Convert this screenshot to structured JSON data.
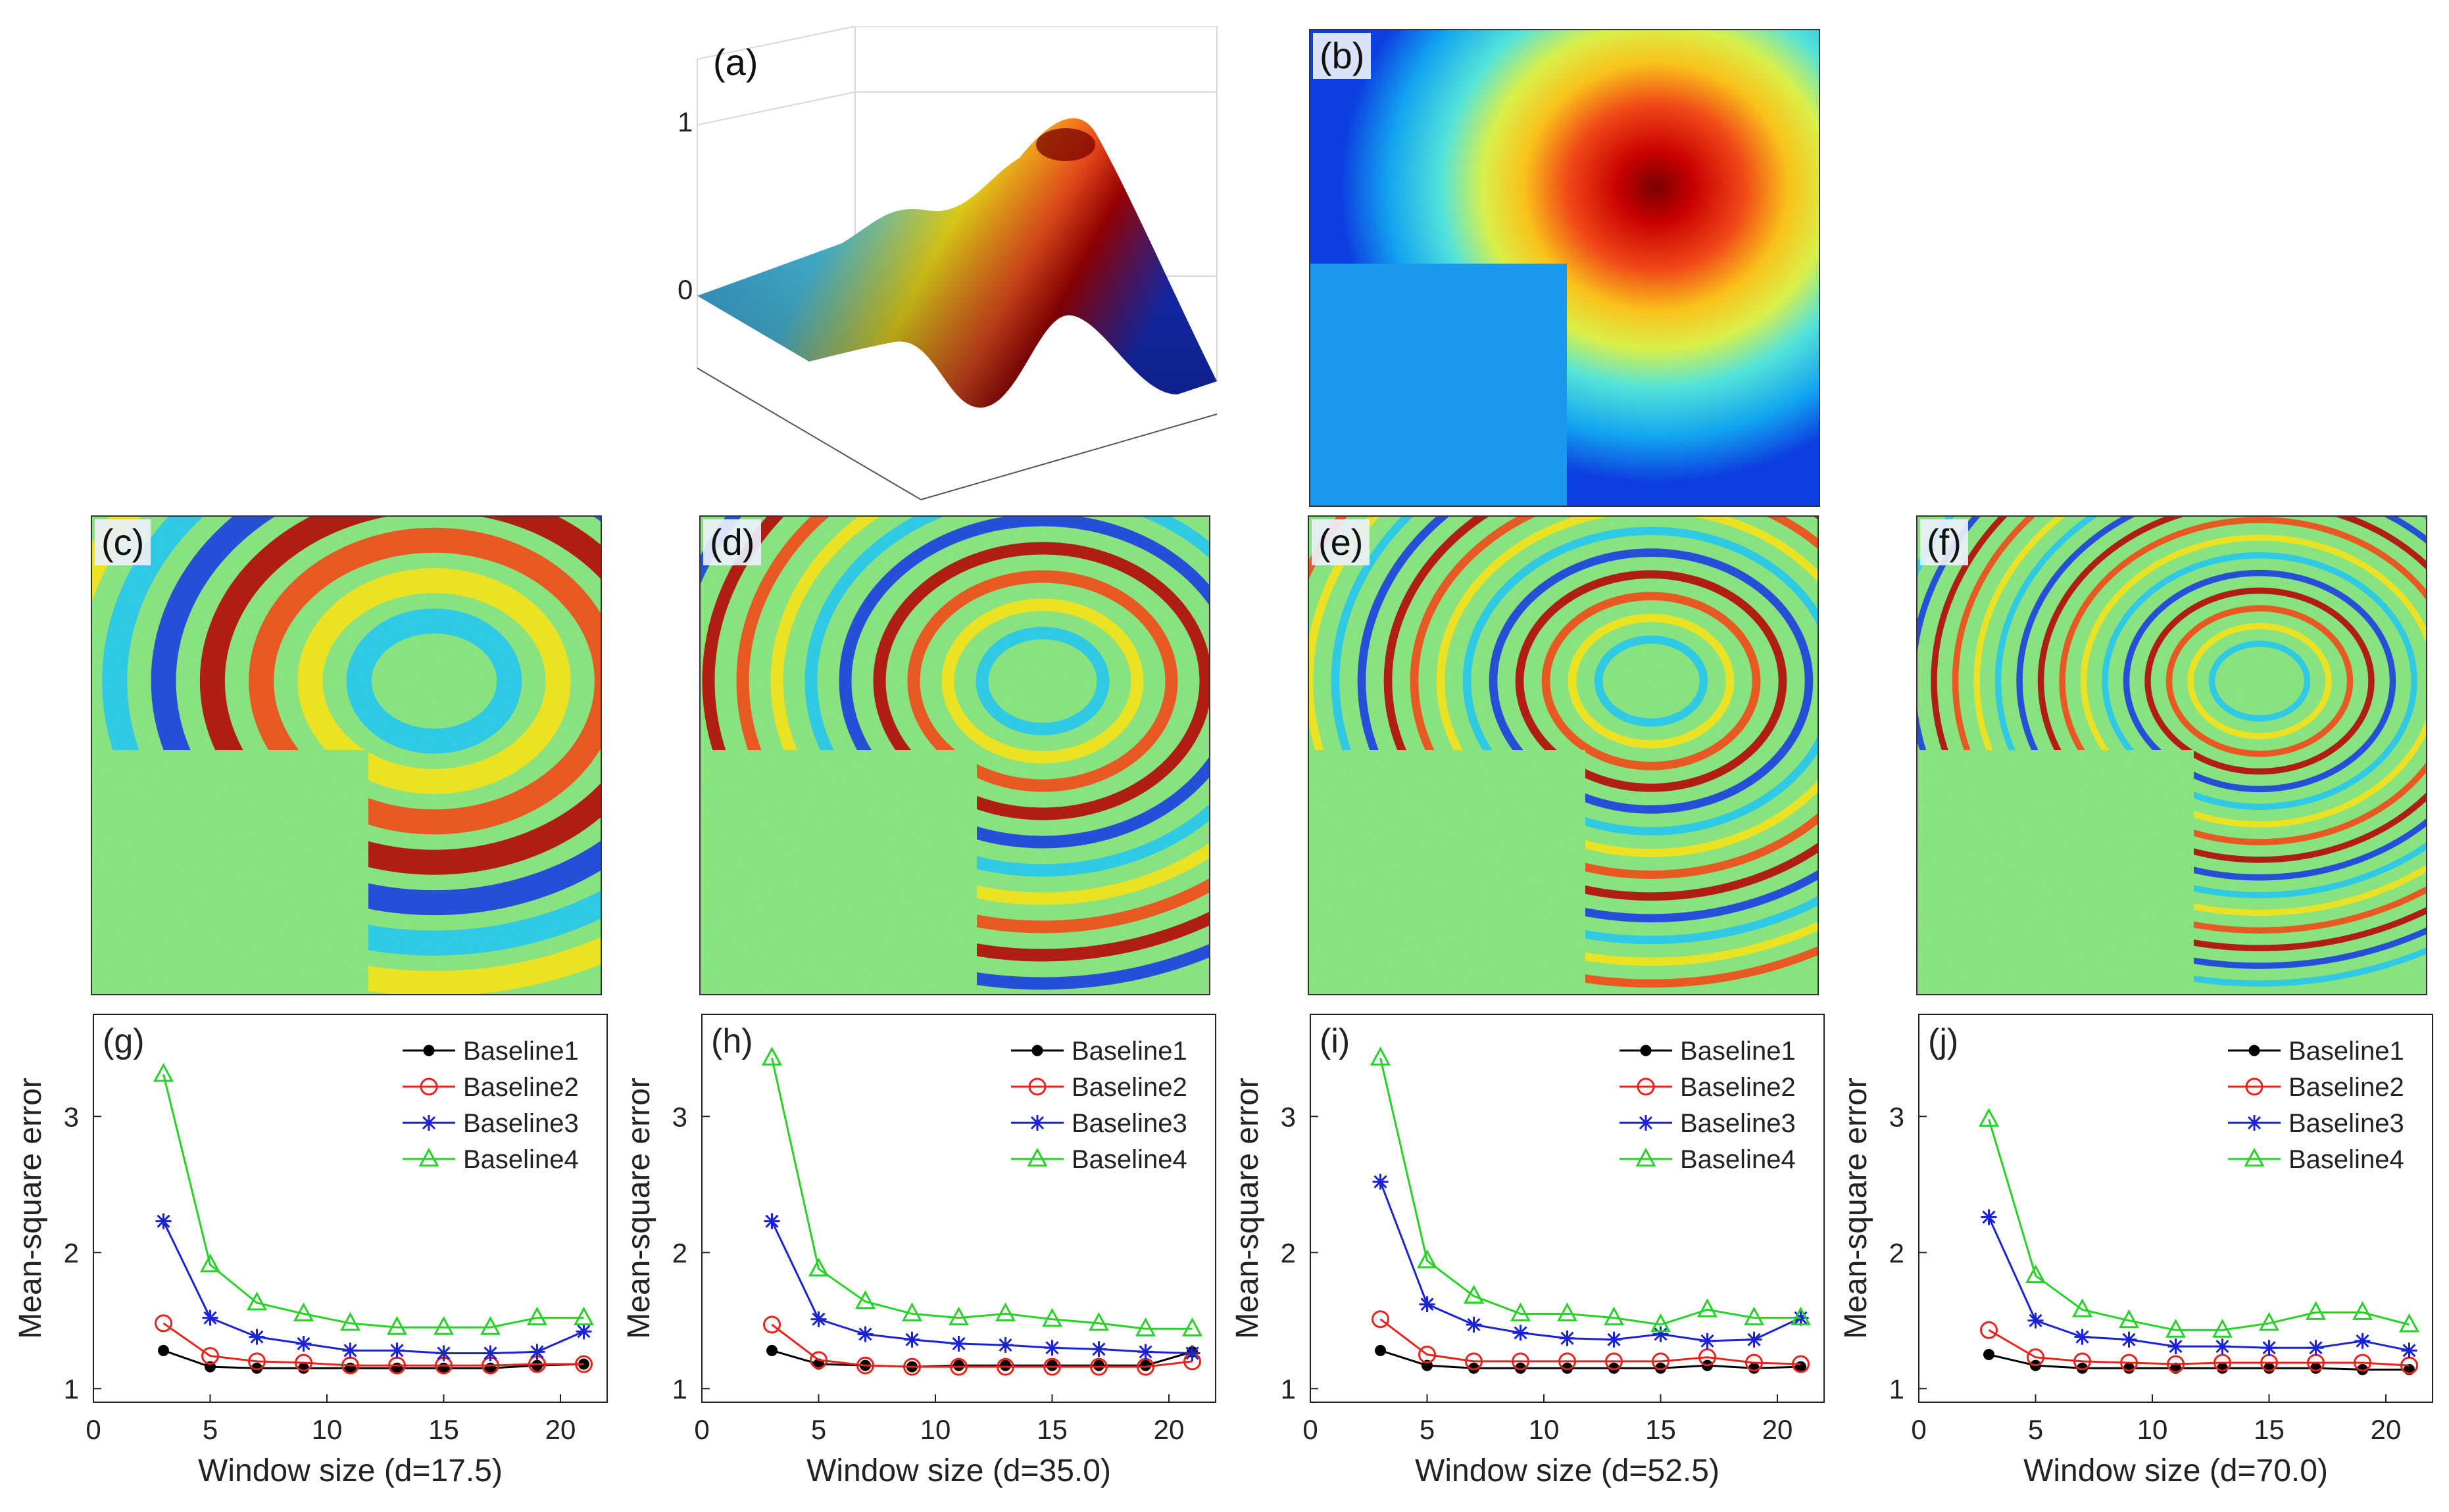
{
  "top_panels": {
    "a": {
      "label": "(a)",
      "zticks": [
        "1",
        "0"
      ]
    },
    "b": {
      "label": "(b)"
    }
  },
  "fringe_panels": [
    {
      "label": "(c)",
      "density": 1
    },
    {
      "label": "(d)",
      "density": 2
    },
    {
      "label": "(e)",
      "density": 3
    },
    {
      "label": "(f)",
      "density": 4
    }
  ],
  "colors": {
    "Baseline1": "#000000",
    "Baseline2": "#e8231b",
    "Baseline3": "#1a22d6",
    "Baseline4": "#28d128"
  },
  "chart_data": [
    {
      "type": "line",
      "panel_label": "(g)",
      "xlabel": "Window size  (d=17.5)",
      "ylabel": "Mean-square error",
      "xlim": [
        0,
        22
      ],
      "ylim": [
        0.9,
        3.75
      ],
      "xticks": [
        0,
        5,
        10,
        15,
        20
      ],
      "yticks": [
        1,
        2,
        3
      ],
      "x": [
        3,
        5,
        7,
        9,
        11,
        13,
        15,
        17,
        19,
        21
      ],
      "series": [
        {
          "name": "Baseline1",
          "marker": "dot",
          "values": [
            1.28,
            1.16,
            1.15,
            1.15,
            1.15,
            1.15,
            1.15,
            1.15,
            1.17,
            1.18
          ]
        },
        {
          "name": "Baseline2",
          "marker": "circle",
          "values": [
            1.48,
            1.24,
            1.2,
            1.19,
            1.17,
            1.17,
            1.17,
            1.17,
            1.18,
            1.18
          ]
        },
        {
          "name": "Baseline3",
          "marker": "star",
          "values": [
            2.23,
            1.52,
            1.38,
            1.33,
            1.28,
            1.28,
            1.26,
            1.26,
            1.27,
            1.42
          ]
        },
        {
          "name": "Baseline4",
          "marker": "triangle",
          "values": [
            3.31,
            1.91,
            1.63,
            1.55,
            1.48,
            1.45,
            1.45,
            1.45,
            1.52,
            1.52
          ]
        }
      ]
    },
    {
      "type": "line",
      "panel_label": "(h)",
      "xlabel": "Window size  (d=35.0)",
      "ylabel": "Mean-square error",
      "xlim": [
        0,
        22
      ],
      "ylim": [
        0.9,
        3.75
      ],
      "xticks": [
        0,
        5,
        10,
        15,
        20
      ],
      "yticks": [
        1,
        2,
        3
      ],
      "x": [
        3,
        5,
        7,
        9,
        11,
        13,
        15,
        17,
        19,
        21
      ],
      "series": [
        {
          "name": "Baseline1",
          "marker": "dot",
          "values": [
            1.28,
            1.18,
            1.17,
            1.16,
            1.17,
            1.17,
            1.17,
            1.17,
            1.17,
            1.27
          ]
        },
        {
          "name": "Baseline2",
          "marker": "circle",
          "values": [
            1.47,
            1.21,
            1.17,
            1.16,
            1.16,
            1.16,
            1.16,
            1.16,
            1.16,
            1.2
          ]
        },
        {
          "name": "Baseline3",
          "marker": "star",
          "values": [
            2.23,
            1.51,
            1.4,
            1.36,
            1.33,
            1.32,
            1.3,
            1.29,
            1.27,
            1.26
          ]
        },
        {
          "name": "Baseline4",
          "marker": "triangle",
          "values": [
            3.43,
            1.88,
            1.64,
            1.55,
            1.52,
            1.55,
            1.51,
            1.48,
            1.44,
            1.44
          ]
        }
      ]
    },
    {
      "type": "line",
      "panel_label": "(i)",
      "xlabel": "Window size  (d=52.5)",
      "ylabel": "Mean-square error",
      "xlim": [
        0,
        22
      ],
      "ylim": [
        0.9,
        3.75
      ],
      "xticks": [
        0,
        5,
        10,
        15,
        20
      ],
      "yticks": [
        1,
        2,
        3
      ],
      "x": [
        3,
        5,
        7,
        9,
        11,
        13,
        15,
        17,
        19,
        21
      ],
      "series": [
        {
          "name": "Baseline1",
          "marker": "dot",
          "values": [
            1.28,
            1.17,
            1.15,
            1.15,
            1.15,
            1.15,
            1.15,
            1.17,
            1.15,
            1.16
          ]
        },
        {
          "name": "Baseline2",
          "marker": "circle",
          "values": [
            1.51,
            1.25,
            1.2,
            1.2,
            1.2,
            1.2,
            1.2,
            1.23,
            1.19,
            1.18
          ]
        },
        {
          "name": "Baseline3",
          "marker": "star",
          "values": [
            2.52,
            1.62,
            1.47,
            1.41,
            1.37,
            1.36,
            1.4,
            1.35,
            1.36,
            1.52
          ]
        },
        {
          "name": "Baseline4",
          "marker": "triangle",
          "values": [
            3.43,
            1.94,
            1.68,
            1.55,
            1.55,
            1.52,
            1.47,
            1.58,
            1.52,
            1.52
          ]
        }
      ]
    },
    {
      "type": "line",
      "panel_label": "(j)",
      "xlabel": "Window size  (d=70.0)",
      "ylabel": "Mean-square error",
      "xlim": [
        0,
        22
      ],
      "ylim": [
        0.9,
        3.75
      ],
      "xticks": [
        0,
        5,
        10,
        15,
        20
      ],
      "yticks": [
        1,
        2,
        3
      ],
      "x": [
        3,
        5,
        7,
        9,
        11,
        13,
        15,
        17,
        19,
        21
      ],
      "series": [
        {
          "name": "Baseline1",
          "marker": "dot",
          "values": [
            1.25,
            1.17,
            1.15,
            1.15,
            1.15,
            1.15,
            1.15,
            1.15,
            1.14,
            1.14
          ]
        },
        {
          "name": "Baseline2",
          "marker": "circle",
          "values": [
            1.43,
            1.23,
            1.2,
            1.19,
            1.18,
            1.19,
            1.19,
            1.19,
            1.19,
            1.17
          ]
        },
        {
          "name": "Baseline3",
          "marker": "star",
          "values": [
            2.26,
            1.5,
            1.38,
            1.36,
            1.31,
            1.31,
            1.3,
            1.3,
            1.35,
            1.28
          ]
        },
        {
          "name": "Baseline4",
          "marker": "triangle",
          "values": [
            2.98,
            1.83,
            1.58,
            1.5,
            1.43,
            1.43,
            1.48,
            1.56,
            1.56,
            1.47
          ]
        }
      ]
    }
  ]
}
